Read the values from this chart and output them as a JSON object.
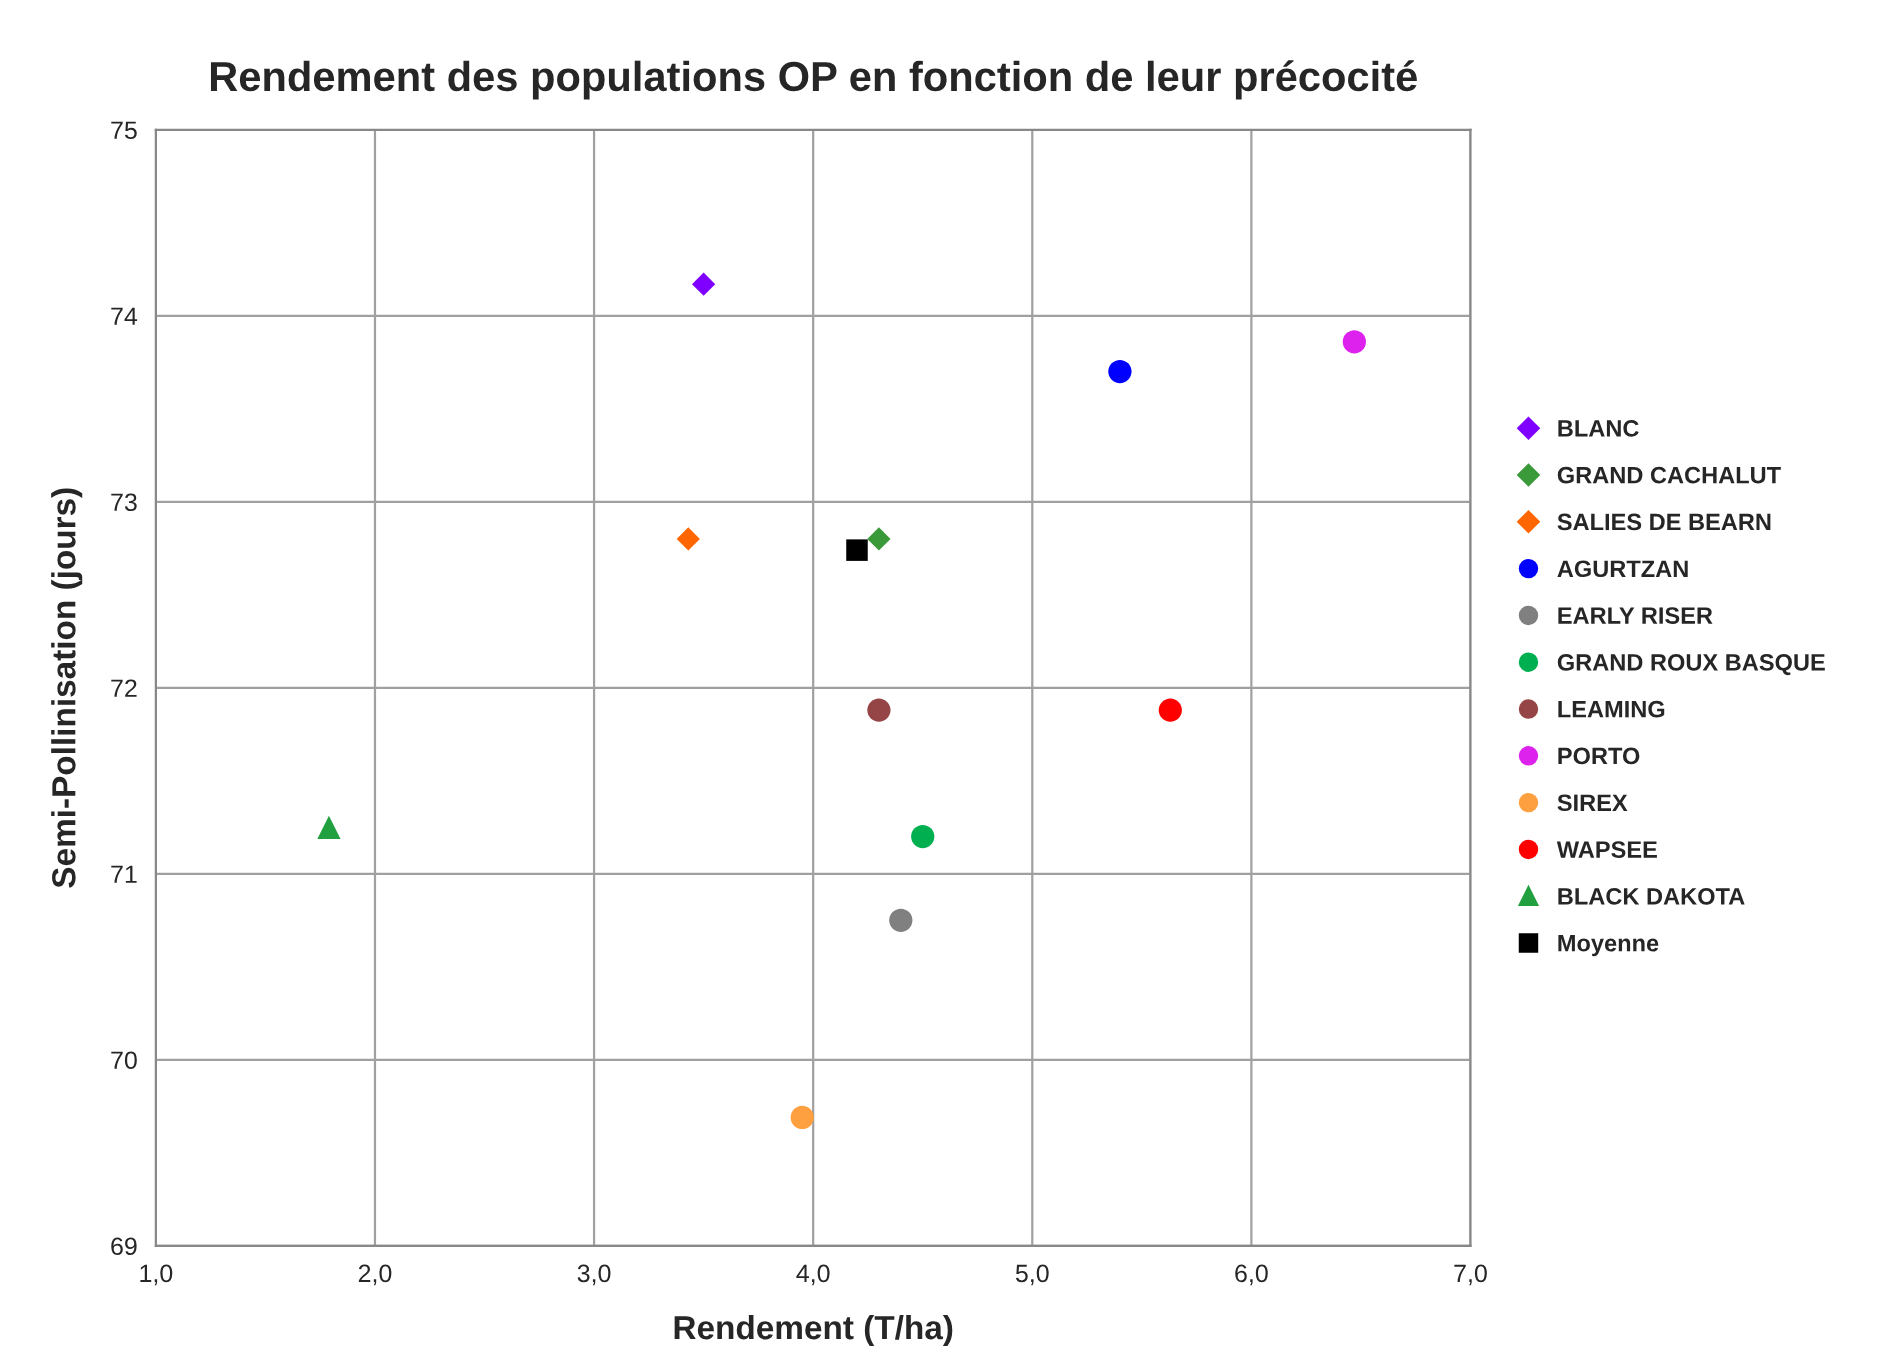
{
  "chart_data": {
    "type": "scatter",
    "title": "Rendement des populations OP en fonction de leur précocité",
    "xlabel": "Rendement (T/ha)",
    "ylabel": "Semi-Pollinisation (jours)",
    "xlim": [
      1.0,
      7.0
    ],
    "ylim": [
      69,
      75
    ],
    "xticks": [
      {
        "value": 1.0,
        "label": "1,0"
      },
      {
        "value": 2.0,
        "label": "2,0"
      },
      {
        "value": 3.0,
        "label": "3,0"
      },
      {
        "value": 4.0,
        "label": "4,0"
      },
      {
        "value": 5.0,
        "label": "5,0"
      },
      {
        "value": 6.0,
        "label": "6,0"
      },
      {
        "value": 7.0,
        "label": "7,0"
      }
    ],
    "yticks": [
      69,
      70,
      71,
      72,
      73,
      74,
      75
    ],
    "grid": true,
    "legend": "right",
    "series": [
      {
        "name": "BLANC",
        "color": "#7f00ff",
        "marker": "diamond",
        "x": [
          3.5
        ],
        "values": [
          74.17
        ]
      },
      {
        "name": "GRAND CACHALUT",
        "color": "#3a9a3a",
        "marker": "diamond",
        "x": [
          4.3
        ],
        "values": [
          72.8
        ]
      },
      {
        "name": "SALIES DE BEARN",
        "color": "#ff6600",
        "marker": "diamond",
        "x": [
          3.43
        ],
        "values": [
          72.8
        ]
      },
      {
        "name": "AGURTZAN",
        "color": "#0000ff",
        "marker": "circle",
        "x": [
          5.4
        ],
        "values": [
          73.7
        ]
      },
      {
        "name": "EARLY RISER",
        "color": "#808080",
        "marker": "circle",
        "x": [
          4.4
        ],
        "values": [
          70.75
        ]
      },
      {
        "name": "GRAND ROUX BASQUE",
        "color": "#00b050",
        "marker": "circle",
        "x": [
          4.5
        ],
        "values": [
          71.2
        ]
      },
      {
        "name": "LEAMING",
        "color": "#954545",
        "marker": "circle",
        "x": [
          4.3
        ],
        "values": [
          71.88
        ]
      },
      {
        "name": "PORTO",
        "color": "#dd22ee",
        "marker": "circle",
        "x": [
          6.47
        ],
        "values": [
          73.86
        ]
      },
      {
        "name": "SIREX",
        "color": "#ffa040",
        "marker": "circle",
        "x": [
          3.95
        ],
        "values": [
          69.69
        ]
      },
      {
        "name": "WAPSEE",
        "color": "#ff0000",
        "marker": "circle",
        "x": [
          5.63
        ],
        "values": [
          71.88
        ]
      },
      {
        "name": "BLACK DAKOTA",
        "color": "#22a040",
        "marker": "triangle",
        "x": [
          1.79
        ],
        "values": [
          71.25
        ]
      },
      {
        "name": "Moyenne",
        "color": "#000000",
        "marker": "square",
        "x": [
          4.2
        ],
        "values": [
          72.74
        ]
      }
    ]
  }
}
